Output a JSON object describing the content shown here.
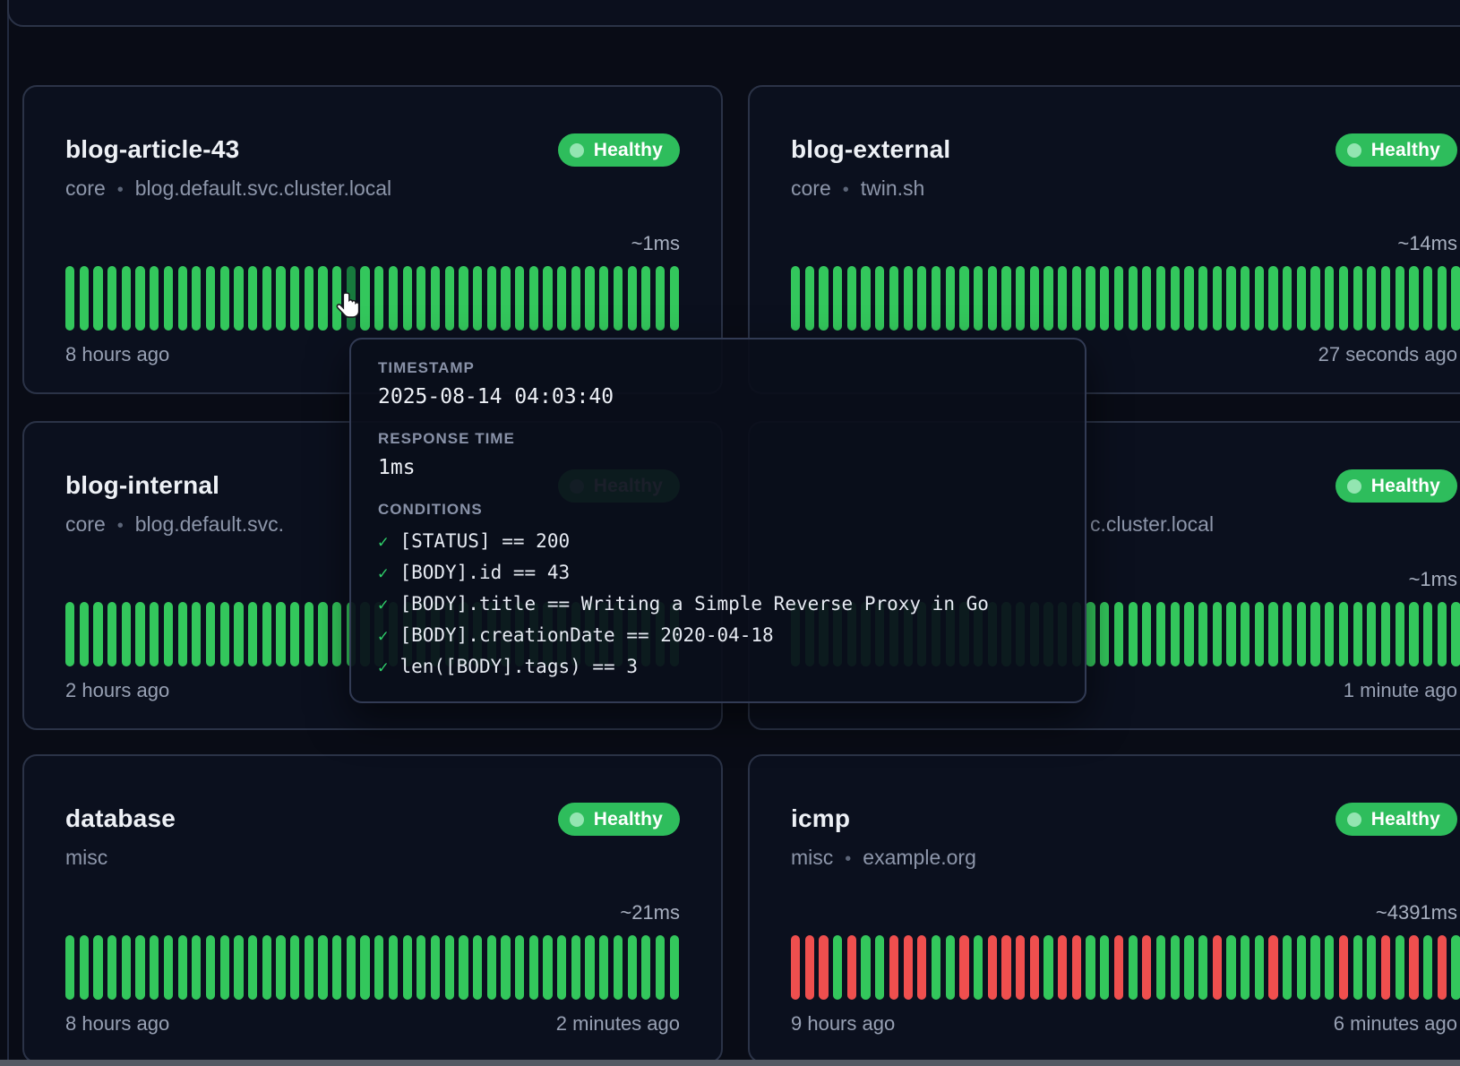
{
  "theme": {
    "page_bg": "#090c16",
    "card_bg": "#0b101e",
    "card_border": "#2b3347",
    "green": "#33c75c",
    "green_hover": "#177a3d",
    "red": "#ef4f4e",
    "badge_green": "#2ebd5c",
    "badge_dot": "#93e5b1"
  },
  "cards": [
    {
      "id": "blog-article-43",
      "title": "blog-article-43",
      "group": "core",
      "target": "blog.default.svc.cluster.local",
      "status": "Healthy",
      "response_time": "~1ms",
      "footer_left": "8 hours ago",
      "footer_right": "",
      "bars": {
        "count": 44,
        "pattern": "all-green",
        "hover_index": 20
      }
    },
    {
      "id": "blog-external",
      "title": "blog-external",
      "group": "core",
      "target": "twin.sh",
      "status": "Healthy",
      "response_time": "~14ms",
      "footer_left": "",
      "footer_right": "27 seconds ago",
      "bars": {
        "count": 48,
        "pattern": "all-green"
      }
    },
    {
      "id": "blog-internal",
      "title": "blog-internal",
      "group": "core",
      "target": "blog.default.svc.",
      "status": "Healthy",
      "response_time": "",
      "footer_left": "2 hours ago",
      "footer_right": "",
      "bars": {
        "count": 44,
        "pattern": "all-green"
      }
    },
    {
      "id": "partial-endpoint",
      "title": "",
      "partial": true,
      "group": "",
      "target": "c.cluster.local",
      "status": "Healthy",
      "response_time": "~1ms",
      "footer_left": "",
      "footer_right": "1 minute ago",
      "bars": {
        "count": 48,
        "pattern": "all-green"
      }
    },
    {
      "id": "database",
      "title": "database",
      "group": "misc",
      "target": "",
      "status": "Healthy",
      "response_time": "~21ms",
      "footer_left": "8 hours ago",
      "footer_right": "2 minutes ago",
      "bars": {
        "count": 44,
        "pattern": "all-green"
      }
    },
    {
      "id": "icmp",
      "title": "icmp",
      "group": "misc",
      "target": "example.org",
      "status": "Healthy",
      "response_time": "~4391ms",
      "footer_left": "9 hours ago",
      "footer_right": "6 minutes ago",
      "bars": {
        "count": 48,
        "pattern": [
          "r",
          "r",
          "r",
          "g",
          "r",
          "g",
          "g",
          "r",
          "r",
          "r",
          "g",
          "g",
          "r",
          "g",
          "r",
          "r",
          "r",
          "r",
          "g",
          "r",
          "r",
          "g",
          "g",
          "r",
          "g",
          "r",
          "g",
          "g",
          "g",
          "g",
          "r",
          "g",
          "g",
          "g",
          "r",
          "g",
          "g",
          "g",
          "g",
          "r",
          "g",
          "g",
          "r",
          "g",
          "r",
          "g",
          "r",
          "g"
        ]
      }
    }
  ],
  "separator": "•",
  "tooltip": {
    "timestamp_label": "TIMESTAMP",
    "timestamp": "2025-08-14 04:03:40",
    "response_label": "RESPONSE TIME",
    "response_time": "1ms",
    "conditions_label": "CONDITIONS",
    "check_icon": "✓",
    "conditions": [
      "[STATUS] == 200",
      "[BODY].id == 43",
      "[BODY].title == Writing a Simple Reverse Proxy in Go",
      "[BODY].creationDate == 2020-04-18",
      "len([BODY].tags) == 3"
    ]
  }
}
